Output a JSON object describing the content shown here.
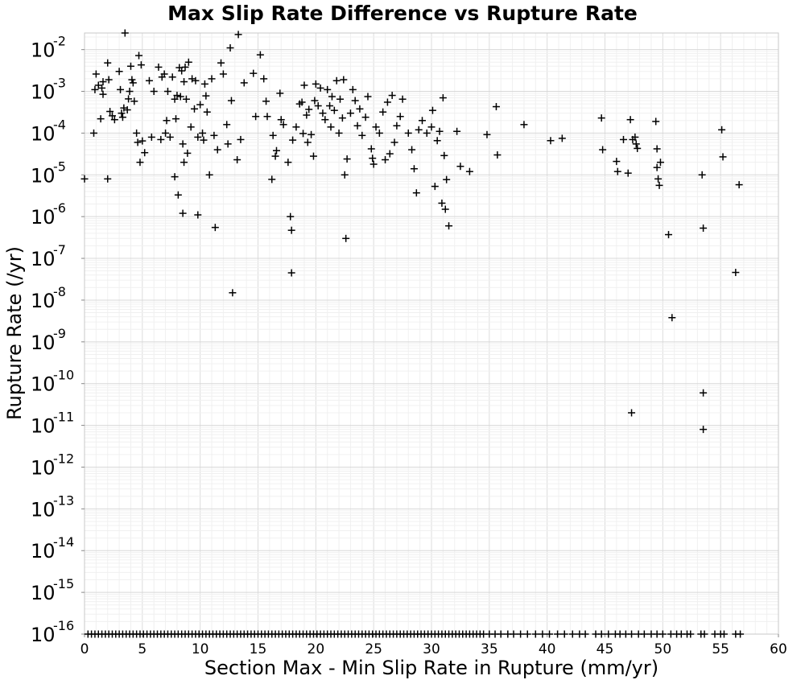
{
  "chart_data": {
    "type": "scatter",
    "title": "Max Slip Rate Difference vs Rupture Rate",
    "xlabel": "Section Max - Min Slip Rate in Rupture (mm/yr)",
    "ylabel": "Rupture Rate (/yr)",
    "xlim": [
      0,
      60
    ],
    "ylim": [
      1e-16,
      0.025
    ],
    "yscale": "log",
    "grid": true,
    "marker": "+",
    "marker_color": "#000000",
    "x_ticks": [
      "0",
      "5",
      "10",
      "15",
      "20",
      "25",
      "30",
      "35",
      "40",
      "45",
      "50",
      "55",
      "60"
    ],
    "y_tick_base": "10",
    "y_tick_exponents": [
      "-2",
      "-3",
      "-4",
      "-5",
      "-6",
      "-7",
      "-8",
      "-9",
      "-10",
      "-11",
      "-12",
      "-13",
      "-14",
      "-15",
      "-16"
    ],
    "points": [
      [
        0.0,
        8e-06
      ],
      [
        0.8,
        0.0001
      ],
      [
        0.9,
        0.0011
      ],
      [
        1.0,
        0.0026
      ],
      [
        1.2,
        0.0014
      ],
      [
        1.4,
        0.00022
      ],
      [
        1.5,
        0.0012
      ],
      [
        1.6,
        0.0017
      ],
      [
        1.6,
        0.00085
      ],
      [
        2.0,
        0.0048
      ],
      [
        2.0,
        8e-06
      ],
      [
        2.1,
        0.0019
      ],
      [
        2.2,
        0.00033
      ],
      [
        2.4,
        0.00026
      ],
      [
        2.6,
        0.00021
      ],
      [
        3.0,
        0.003
      ],
      [
        3.1,
        0.0011
      ],
      [
        3.2,
        0.0003
      ],
      [
        3.3,
        0.00024
      ],
      [
        3.4,
        0.0004
      ],
      [
        3.5,
        0.025
      ],
      [
        3.7,
        0.00036
      ],
      [
        3.8,
        0.00066
      ],
      [
        3.9,
        0.001
      ],
      [
        4.0,
        0.004
      ],
      [
        4.1,
        0.0019
      ],
      [
        4.2,
        0.0016
      ],
      [
        4.3,
        0.00058
      ],
      [
        4.5,
        0.0001
      ],
      [
        4.6,
        6e-05
      ],
      [
        4.7,
        0.0072
      ],
      [
        4.8,
        2e-05
      ],
      [
        4.9,
        0.0043
      ],
      [
        5.0,
        6.5e-05
      ],
      [
        5.2,
        3.4e-05
      ],
      [
        5.6,
        0.0018
      ],
      [
        5.8,
        8e-05
      ],
      [
        6.0,
        0.001
      ],
      [
        6.4,
        0.0038
      ],
      [
        6.6,
        7e-05
      ],
      [
        6.7,
        0.0022
      ],
      [
        6.9,
        0.0026
      ],
      [
        7.0,
        0.0001
      ],
      [
        7.1,
        0.0002
      ],
      [
        7.2,
        0.001
      ],
      [
        7.4,
        8e-05
      ],
      [
        7.6,
        0.0022
      ],
      [
        7.8,
        9e-06
      ],
      [
        7.8,
        0.00065
      ],
      [
        7.9,
        0.00022
      ],
      [
        8.0,
        0.0008
      ],
      [
        8.1,
        3.3e-06
      ],
      [
        8.2,
        0.0037
      ],
      [
        8.3,
        0.00075
      ],
      [
        8.4,
        0.0031
      ],
      [
        8.5,
        1.2e-06
      ],
      [
        8.5,
        5.5e-05
      ],
      [
        8.6,
        0.0017
      ],
      [
        8.6,
        2e-05
      ],
      [
        8.7,
        0.0038
      ],
      [
        8.8,
        0.00065
      ],
      [
        8.9,
        3.3e-05
      ],
      [
        9.0,
        0.005
      ],
      [
        9.2,
        0.00014
      ],
      [
        9.3,
        0.002
      ],
      [
        9.5,
        0.00038
      ],
      [
        9.6,
        0.0018
      ],
      [
        9.8,
        1.1e-06
      ],
      [
        9.8,
        8e-05
      ],
      [
        10.0,
        0.00048
      ],
      [
        10.2,
        0.0001
      ],
      [
        10.3,
        6.8e-05
      ],
      [
        10.4,
        0.0015
      ],
      [
        10.5,
        0.00078
      ],
      [
        10.6,
        0.00032
      ],
      [
        10.8,
        1e-05
      ],
      [
        11.0,
        0.002
      ],
      [
        11.2,
        8.8e-05
      ],
      [
        11.3,
        5.5e-07
      ],
      [
        11.5,
        4e-05
      ],
      [
        11.8,
        0.0048
      ],
      [
        12.0,
        0.0026
      ],
      [
        12.3,
        0.00016
      ],
      [
        12.4,
        5.5e-05
      ],
      [
        12.6,
        0.011
      ],
      [
        12.7,
        0.0006
      ],
      [
        12.8,
        1.5e-08
      ],
      [
        13.2,
        2.3e-05
      ],
      [
        13.3,
        0.023
      ],
      [
        13.5,
        7e-05
      ],
      [
        13.8,
        0.0016
      ],
      [
        14.6,
        0.0027
      ],
      [
        14.8,
        0.00025
      ],
      [
        15.2,
        0.0075
      ],
      [
        15.5,
        0.002
      ],
      [
        15.7,
        0.00058
      ],
      [
        15.8,
        0.00025
      ],
      [
        16.2,
        7.8e-06
      ],
      [
        16.3,
        8.8e-05
      ],
      [
        16.5,
        2.8e-05
      ],
      [
        16.6,
        3.8e-05
      ],
      [
        16.9,
        0.0009
      ],
      [
        17.0,
        0.00021
      ],
      [
        17.2,
        0.00016
      ],
      [
        17.6,
        2e-05
      ],
      [
        17.8,
        1e-06
      ],
      [
        17.9,
        4.7e-07
      ],
      [
        17.9,
        4.5e-08
      ],
      [
        18.0,
        6.8e-05
      ],
      [
        18.3,
        0.00014
      ],
      [
        18.6,
        0.0005
      ],
      [
        18.8,
        0.00055
      ],
      [
        18.9,
        9.8e-05
      ],
      [
        19.0,
        0.0014
      ],
      [
        19.2,
        0.00027
      ],
      [
        19.3,
        6e-05
      ],
      [
        19.4,
        0.00037
      ],
      [
        19.6,
        9.2e-05
      ],
      [
        19.8,
        2.8e-05
      ],
      [
        19.9,
        0.0006
      ],
      [
        20.0,
        0.0015
      ],
      [
        20.2,
        0.00045
      ],
      [
        20.4,
        0.0012
      ],
      [
        20.6,
        0.0003
      ],
      [
        20.8,
        0.00021
      ],
      [
        21.0,
        0.0011
      ],
      [
        21.2,
        0.00045
      ],
      [
        21.3,
        0.00014
      ],
      [
        21.4,
        0.00075
      ],
      [
        21.6,
        0.00035
      ],
      [
        21.8,
        0.0018
      ],
      [
        22.0,
        0.0001
      ],
      [
        22.1,
        0.00065
      ],
      [
        22.3,
        0.00023
      ],
      [
        22.4,
        0.0019
      ],
      [
        22.5,
        1e-05
      ],
      [
        22.6,
        3e-07
      ],
      [
        22.7,
        2.4e-05
      ],
      [
        23.0,
        0.0003
      ],
      [
        23.2,
        0.0011
      ],
      [
        23.4,
        0.0006
      ],
      [
        23.6,
        0.00015
      ],
      [
        23.8,
        0.00038
      ],
      [
        24.0,
        8.8e-05
      ],
      [
        24.3,
        0.00024
      ],
      [
        24.5,
        0.00075
      ],
      [
        24.8,
        4.2e-05
      ],
      [
        24.9,
        2.5e-05
      ],
      [
        25.0,
        1.8e-05
      ],
      [
        25.2,
        0.00014
      ],
      [
        25.5,
        0.0001
      ],
      [
        25.8,
        0.00032
      ],
      [
        26.0,
        2.3e-05
      ],
      [
        26.2,
        0.00055
      ],
      [
        26.4,
        3.2e-05
      ],
      [
        26.6,
        0.0008
      ],
      [
        26.8,
        6e-05
      ],
      [
        27.0,
        0.00015
      ],
      [
        27.3,
        0.00025
      ],
      [
        27.5,
        0.00065
      ],
      [
        28.0,
        0.0001
      ],
      [
        28.3,
        4e-05
      ],
      [
        28.5,
        1.4e-05
      ],
      [
        28.7,
        3.7e-06
      ],
      [
        28.9,
        0.00012
      ],
      [
        29.2,
        0.0002
      ],
      [
        29.6,
        0.0001
      ],
      [
        30.0,
        0.00014
      ],
      [
        30.1,
        0.00035
      ],
      [
        30.3,
        5.3e-06
      ],
      [
        30.5,
        6.6e-05
      ],
      [
        30.7,
        0.00011
      ],
      [
        30.9,
        2.1e-06
      ],
      [
        31.0,
        0.0007
      ],
      [
        31.1,
        2.9e-05
      ],
      [
        31.2,
        1.5e-06
      ],
      [
        31.3,
        7.7e-06
      ],
      [
        31.5,
        6e-07
      ],
      [
        32.2,
        0.00011
      ],
      [
        32.5,
        1.6e-05
      ],
      [
        33.3,
        1.2e-05
      ],
      [
        34.8,
        9.2e-05
      ],
      [
        35.6,
        0.00043
      ],
      [
        35.7,
        3e-05
      ],
      [
        38.0,
        0.00016
      ],
      [
        40.3,
        6.6e-05
      ],
      [
        41.3,
        7.5e-05
      ],
      [
        44.7,
        0.00023
      ],
      [
        44.8,
        4e-05
      ],
      [
        46.0,
        2.1e-05
      ],
      [
        46.1,
        1.2e-05
      ],
      [
        46.6,
        7e-05
      ],
      [
        47.0,
        1.1e-05
      ],
      [
        47.2,
        0.00021
      ],
      [
        47.3,
        2e-11
      ],
      [
        47.4,
        7e-05
      ],
      [
        47.6,
        8e-05
      ],
      [
        47.7,
        5.5e-05
      ],
      [
        47.8,
        4.3e-05
      ],
      [
        49.4,
        0.00019
      ],
      [
        49.5,
        4.2e-05
      ],
      [
        49.5,
        1.5e-05
      ],
      [
        49.6,
        8e-06
      ],
      [
        49.7,
        5.6e-06
      ],
      [
        49.8,
        2e-05
      ],
      [
        50.5,
        3.7e-07
      ],
      [
        50.8,
        3.8e-09
      ],
      [
        53.4,
        1e-05
      ],
      [
        53.5,
        5.3e-07
      ],
      [
        53.5,
        6e-11
      ],
      [
        53.5,
        8e-12
      ],
      [
        55.1,
        0.00012
      ],
      [
        55.2,
        2.7e-05
      ],
      [
        56.3,
        4.6e-08
      ],
      [
        56.6,
        5.8e-06
      ]
    ],
    "floor_value": 1e-16,
    "floor_points_x": [
      0.3,
      0.6,
      0.9,
      1.2,
      1.5,
      1.8,
      2.1,
      2.4,
      2.7,
      3.0,
      3.3,
      3.6,
      3.9,
      4.2,
      4.5,
      4.8,
      5.1,
      5.4,
      5.7,
      6.0,
      6.3,
      6.6,
      6.9,
      7.2,
      7.5,
      7.8,
      8.1,
      8.4,
      8.7,
      9.0,
      9.3,
      9.6,
      9.9,
      10.2,
      10.5,
      10.8,
      11.1,
      11.4,
      11.7,
      12.0,
      12.3,
      12.6,
      12.9,
      13.2,
      13.5,
      13.8,
      14.1,
      14.4,
      14.7,
      15.0,
      15.3,
      15.6,
      15.9,
      16.2,
      16.5,
      16.8,
      17.1,
      17.4,
      17.7,
      18.0,
      18.3,
      18.6,
      18.9,
      19.2,
      19.5,
      19.8,
      20.1,
      20.4,
      20.7,
      21.0,
      21.3,
      21.6,
      21.9,
      22.2,
      22.5,
      22.8,
      23.1,
      23.4,
      23.7,
      24.0,
      24.3,
      24.6,
      24.9,
      25.2,
      25.5,
      25.8,
      26.1,
      26.4,
      26.7,
      27.0,
      27.3,
      27.6,
      27.9,
      28.2,
      28.5,
      28.8,
      29.1,
      29.4,
      29.7,
      30.0,
      30.3,
      30.6,
      30.9,
      31.2,
      31.5,
      31.8,
      32.1,
      32.4,
      32.7,
      33.0,
      33.3,
      33.6,
      33.9,
      34.2,
      34.5,
      35.0,
      35.5,
      36.0,
      36.6,
      37.1,
      37.7,
      38.3,
      39.0,
      39.6,
      40.2,
      40.9,
      41.5,
      42.2,
      42.8,
      43.3,
      44.2,
      44.7,
      45.3,
      45.9,
      46.3,
      46.8,
      47.3,
      47.9,
      48.4,
      49.0,
      49.5,
      50.0,
      50.7,
      51.2,
      51.6,
      52.1,
      52.4,
      53.3,
      53.6,
      54.5,
      55.0,
      55.3,
      56.3,
      56.7
    ]
  }
}
